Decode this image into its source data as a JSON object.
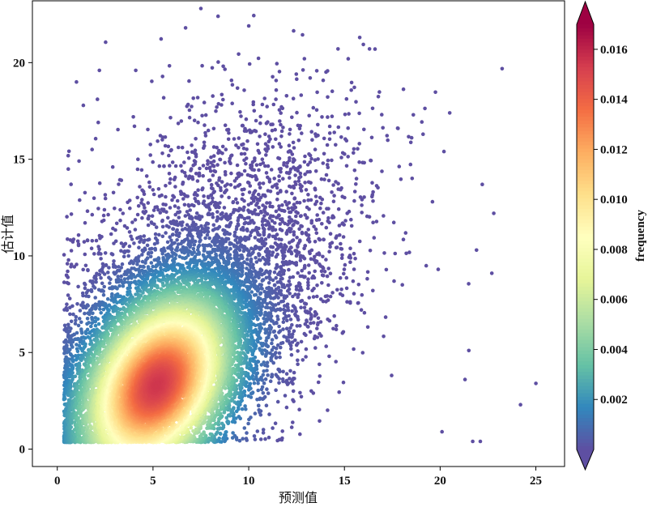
{
  "chart_data": {
    "type": "scatter",
    "title": "",
    "xlabel": "预测值",
    "ylabel": "估计值",
    "xlim": [
      -1.3,
      26.5
    ],
    "ylim": [
      -0.9,
      23.2
    ],
    "x_ticks": [
      "0",
      "5",
      "10",
      "15",
      "20",
      "25"
    ],
    "x_tick_values": [
      0,
      5,
      10,
      15,
      20,
      25
    ],
    "y_ticks": [
      "0",
      "5",
      "10",
      "15",
      "20"
    ],
    "y_tick_values": [
      0,
      5,
      10,
      15,
      20
    ],
    "grid": false,
    "density_peak": {
      "x": 5.2,
      "y": 3.3
    },
    "colorbar": {
      "label": "frequency",
      "colormap": "Spectral_r",
      "range": [
        0,
        0.017
      ],
      "ticks": [
        "0.002",
        "0.004",
        "0.006",
        "0.008",
        "0.010",
        "0.012",
        "0.014",
        "0.016"
      ],
      "tick_values": [
        0.002,
        0.004,
        0.006,
        0.008,
        0.01,
        0.012,
        0.014,
        0.016
      ],
      "extend": "both"
    },
    "colors": [
      "#5e4fa2",
      "#3288bd",
      "#66c2a5",
      "#abdda4",
      "#e6f598",
      "#ffffbf",
      "#fee08b",
      "#fdae61",
      "#f46d43",
      "#d53e4f",
      "#9e0142"
    ],
    "outlier_points": [
      {
        "x": 25.0,
        "y": 3.4
      },
      {
        "x": 24.2,
        "y": 2.3
      },
      {
        "x": 22.8,
        "y": 12.2
      },
      {
        "x": 22.7,
        "y": 9.1
      },
      {
        "x": 22.2,
        "y": 13.7
      },
      {
        "x": 22.1,
        "y": 0.4
      },
      {
        "x": 21.9,
        "y": 10.3
      },
      {
        "x": 21.7,
        "y": 0.4
      },
      {
        "x": 21.5,
        "y": 5.1
      },
      {
        "x": 21.3,
        "y": 3.6
      },
      {
        "x": 20.5,
        "y": 17.4
      },
      {
        "x": 20.2,
        "y": 15.4
      },
      {
        "x": 19.9,
        "y": 9.3
      },
      {
        "x": 20.1,
        "y": 0.9
      },
      {
        "x": 19.6,
        "y": 12.8
      },
      {
        "x": 18.6,
        "y": 17.3
      },
      {
        "x": 17.8,
        "y": 16.6
      },
      {
        "x": 16.6,
        "y": 20.7
      },
      {
        "x": 15.8,
        "y": 21.3
      },
      {
        "x": 15.2,
        "y": 20.2
      },
      {
        "x": 10.0,
        "y": 21.9
      },
      {
        "x": 7.5,
        "y": 22.8
      },
      {
        "x": 8.4,
        "y": 22.4
      },
      {
        "x": 6.7,
        "y": 21.8
      },
      {
        "x": 1.0,
        "y": 19.0
      },
      {
        "x": 2.2,
        "y": 19.6
      },
      {
        "x": 4.1,
        "y": 19.6
      }
    ]
  }
}
